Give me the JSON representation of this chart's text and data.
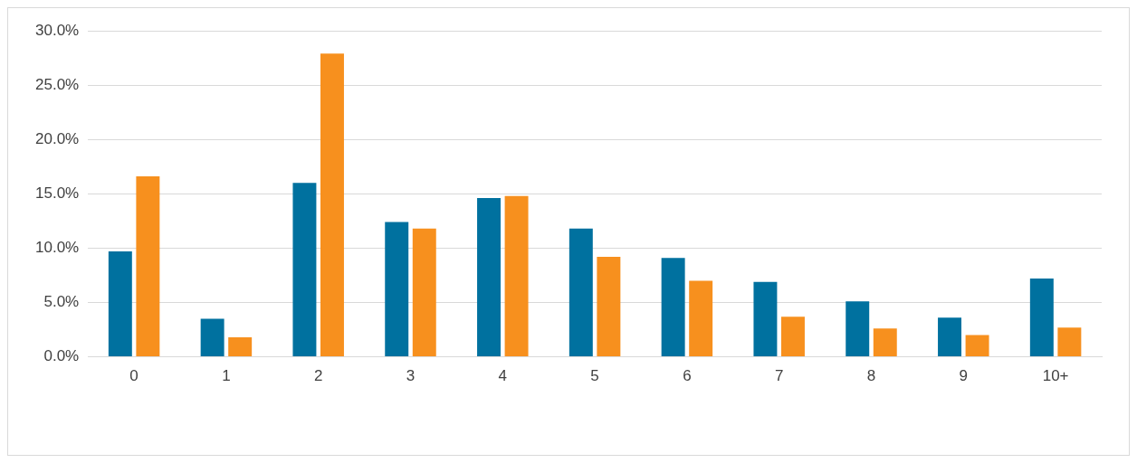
{
  "chart_data": {
    "type": "bar",
    "categories": [
      "0",
      "1",
      "2",
      "3",
      "4",
      "5",
      "6",
      "7",
      "8",
      "9",
      "10+"
    ],
    "series": [
      {
        "color": "#00719f",
        "values": [
          9.7,
          3.5,
          16.0,
          12.4,
          14.6,
          11.8,
          9.1,
          6.9,
          5.1,
          3.6,
          7.2
        ]
      },
      {
        "color": "#f7901e",
        "values": [
          16.6,
          1.8,
          27.9,
          11.8,
          14.8,
          9.2,
          7.0,
          3.7,
          2.6,
          2.0,
          2.7
        ]
      }
    ],
    "ylim": [
      0,
      30
    ],
    "yticks": [
      {
        "value": 0,
        "label": "0.0%"
      },
      {
        "value": 5,
        "label": "5.0%"
      },
      {
        "value": 10,
        "label": "10.0%"
      },
      {
        "value": 15,
        "label": "15.0%"
      },
      {
        "value": 20,
        "label": "20.0%"
      },
      {
        "value": 25,
        "label": "25.0%"
      },
      {
        "value": 30,
        "label": "30.0%"
      }
    ],
    "grid": "y",
    "legend": false
  }
}
